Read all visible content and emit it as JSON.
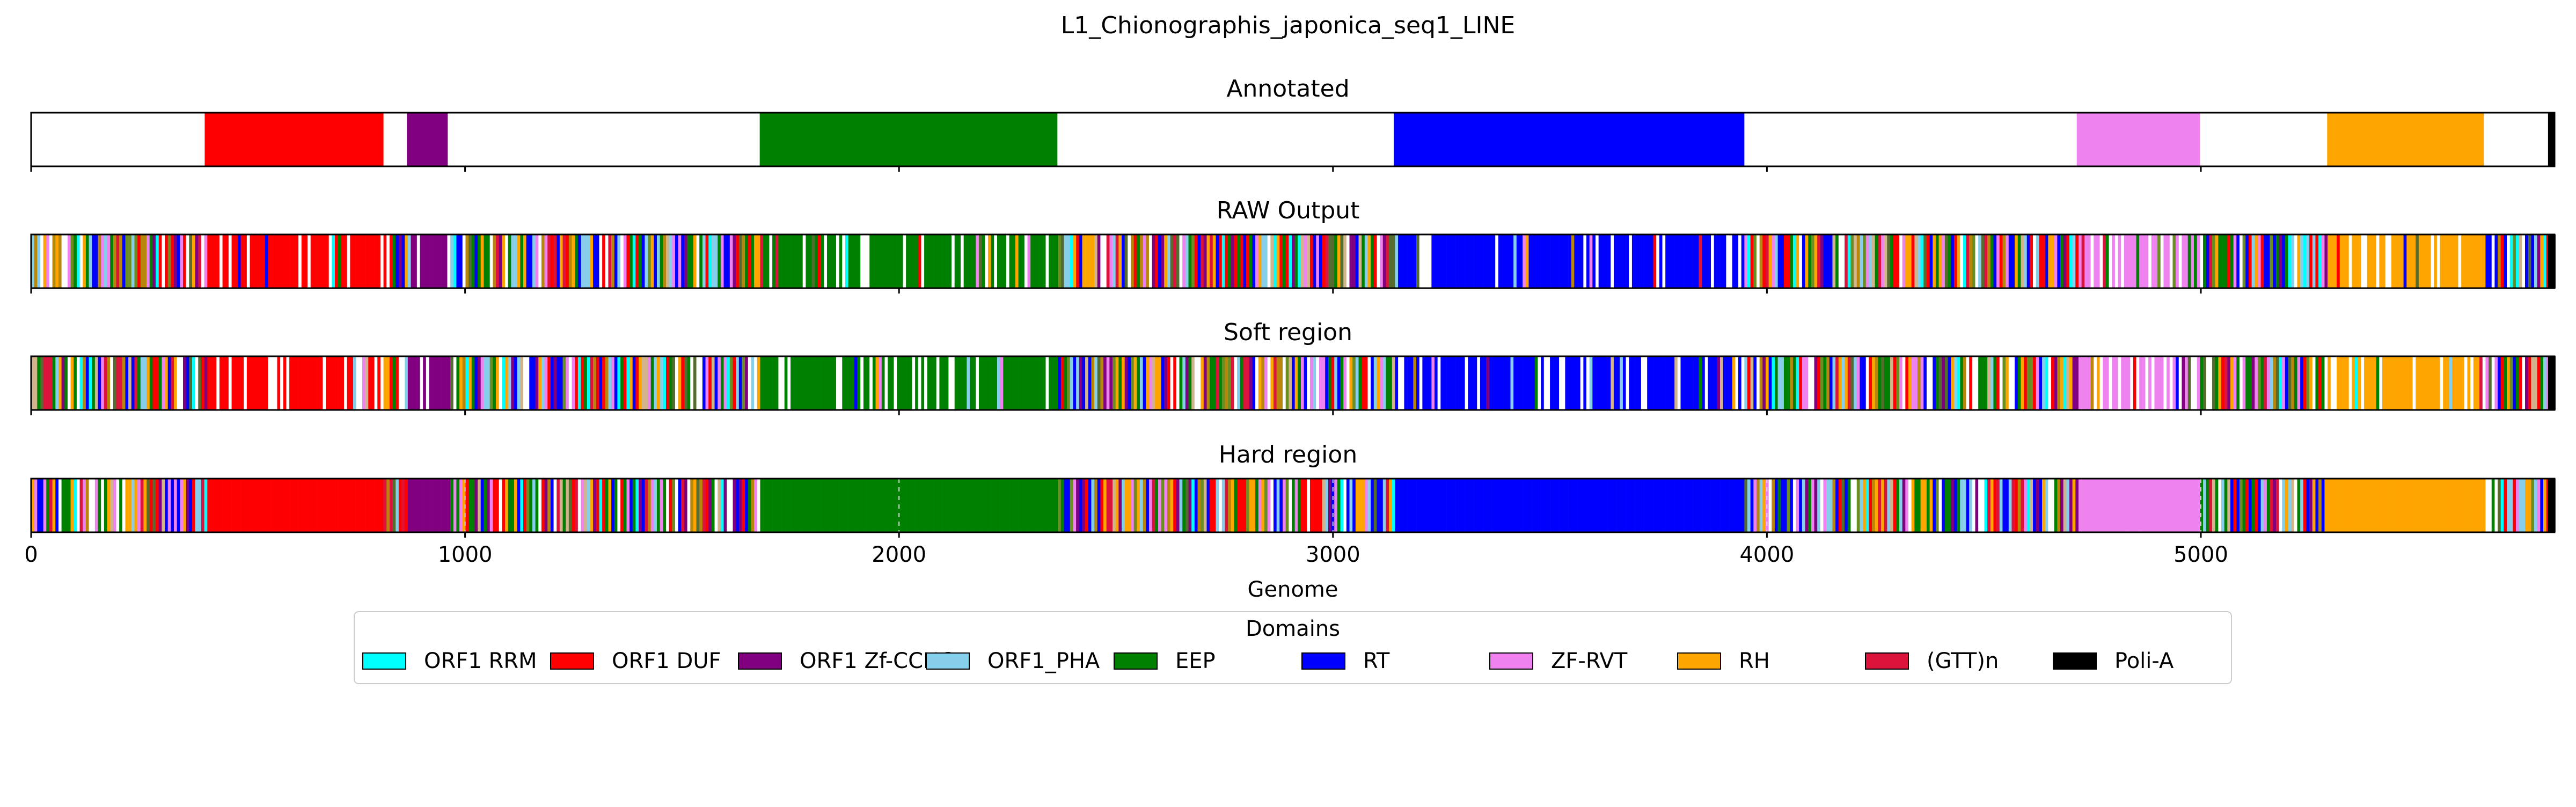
{
  "chart_data": {
    "type": "bar",
    "title": "L1_Chionographis_japonica_seq1_LINE",
    "xlabel": "Genome",
    "xlim": [
      0,
      5815
    ],
    "xticks": [
      0,
      1000,
      2000,
      3000,
      4000,
      5000
    ],
    "colors": {
      "ORF1 RRM": "#00ffff",
      "ORF1 DUF": "#ff0000",
      "ORF1 Zf-CCHC": "#800080",
      "ORF1_PHA": "#87ceeb",
      "EEP": "#008000",
      "RT": "#0000ff",
      "ZF-RVT": "#ee82ee",
      "RH": "#ffa500",
      "(GTT)n": "#dc143c",
      "Poli-A": "#000000"
    },
    "legend": {
      "title": "Domains",
      "placement": "bottom-center",
      "items": [
        "ORF1 RRM",
        "ORF1 DUF",
        "ORF1 Zf-CCHC",
        "ORF1_PHA",
        "EEP",
        "RT",
        "ZF-RVT",
        "RH",
        "(GTT)n",
        "Poli-A"
      ]
    },
    "panels": [
      {
        "title": "Annotated",
        "pattern": "clean",
        "segments": [
          {
            "domain": "ORF1 DUF",
            "start": 400,
            "end": 812
          },
          {
            "domain": "ORF1 Zf-CCHC",
            "start": 866,
            "end": 960
          },
          {
            "domain": "EEP",
            "start": 1679,
            "end": 2365
          },
          {
            "domain": "RT",
            "start": 3140,
            "end": 3948
          },
          {
            "domain": "ZF-RVT",
            "start": 4714,
            "end": 4998
          },
          {
            "domain": "RH",
            "start": 5291,
            "end": 5652
          },
          {
            "domain": "Poli-A",
            "start": 5800,
            "end": 5815
          }
        ]
      },
      {
        "title": "RAW Output",
        "pattern": "noisy"
      },
      {
        "title": "Soft region",
        "pattern": "noisy"
      },
      {
        "title": "Hard region",
        "pattern": "hard"
      }
    ]
  }
}
